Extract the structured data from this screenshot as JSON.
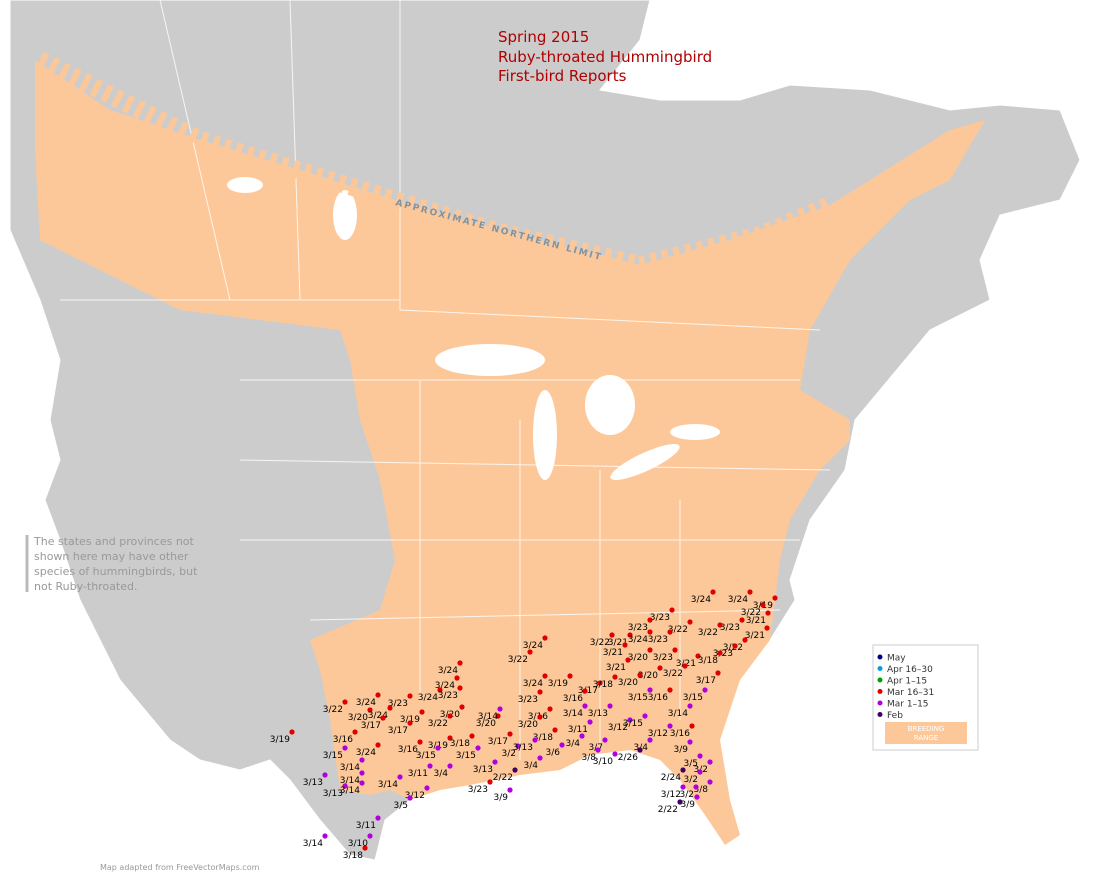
{
  "title": [
    "Spring 2015",
    "Ruby-throated Hummingbird",
    "First-bird Reports"
  ],
  "range_limit_label": "APPROXIMATE NORTHERN LIMIT",
  "note": [
    "The states and provinces not",
    "shown here may have other",
    "species of hummingbirds, but",
    "not Ruby-throated."
  ],
  "legend": {
    "items": [
      {
        "label": "May",
        "color": "#000080"
      },
      {
        "label": "Apr 16–30",
        "color": "#00a0e0"
      },
      {
        "label": "Apr 1–15",
        "color": "#00a000"
      },
      {
        "label": "Mar 16–31",
        "color": "#e00000",
        "reports": [
          "3/24",
          "3/24",
          "3/19",
          "3/22",
          "3/21",
          "3/23",
          "3/23",
          "3/22",
          "3/23",
          "3/21",
          "3/22",
          "3/24",
          "3/22",
          "3/21",
          "3/24",
          "3/23",
          "3/22",
          "3/23",
          "3/22",
          "3/21",
          "3/20",
          "3/23",
          "3/21",
          "3/24",
          "3/21",
          "3/18",
          "3/20",
          "3/22",
          "3/17",
          "3/24",
          "3/24",
          "3/19",
          "3/17",
          "3/18",
          "3/20",
          "3/24",
          "3/23",
          "3/24",
          "3/23",
          "3/23",
          "3/16",
          "3/22",
          "3/20",
          "3/24",
          "3/19",
          "3/20",
          "3/20",
          "3/16",
          "3/17",
          "3/17",
          "3/22",
          "3/20",
          "3/16",
          "3/19",
          "3/18",
          "3/17",
          "3/18",
          "3/24",
          "3/16",
          "3/19",
          "3/23",
          "3/16",
          "3/16",
          "3/18"
        ]
      },
      {
        "label": "Mar 1–15",
        "color": "#b000e0",
        "reports": [
          "3/14",
          "3/14",
          "3/13",
          "3/11",
          "3/12",
          "3/15",
          "3/12",
          "3/15",
          "3/14",
          "3/15",
          "3/15",
          "3/14",
          "3/14",
          "3/13",
          "3/13",
          "3/14",
          "3/14",
          "3/11",
          "3/4",
          "3/15",
          "3/15",
          "3/13",
          "3/2",
          "3/13",
          "3/6",
          "3/4",
          "3/7",
          "3/4",
          "3/9",
          "3/5",
          "3/8",
          "3/10",
          "3/4",
          "3/12",
          "3/5",
          "3/11",
          "3/10",
          "3/14",
          "3/2",
          "3/2",
          "3/8",
          "3/12",
          "3/2",
          "3/9",
          "3/9"
        ]
      },
      {
        "label": "Feb",
        "color": "#400060",
        "reports": [
          "2/22",
          "2/26",
          "2/24",
          "2/22"
        ]
      }
    ],
    "range_label": [
      "BREEDING",
      "RANGE"
    ],
    "range_color": "#fdc899"
  },
  "credit": "Map adapted from FreeVectorMaps.com"
}
